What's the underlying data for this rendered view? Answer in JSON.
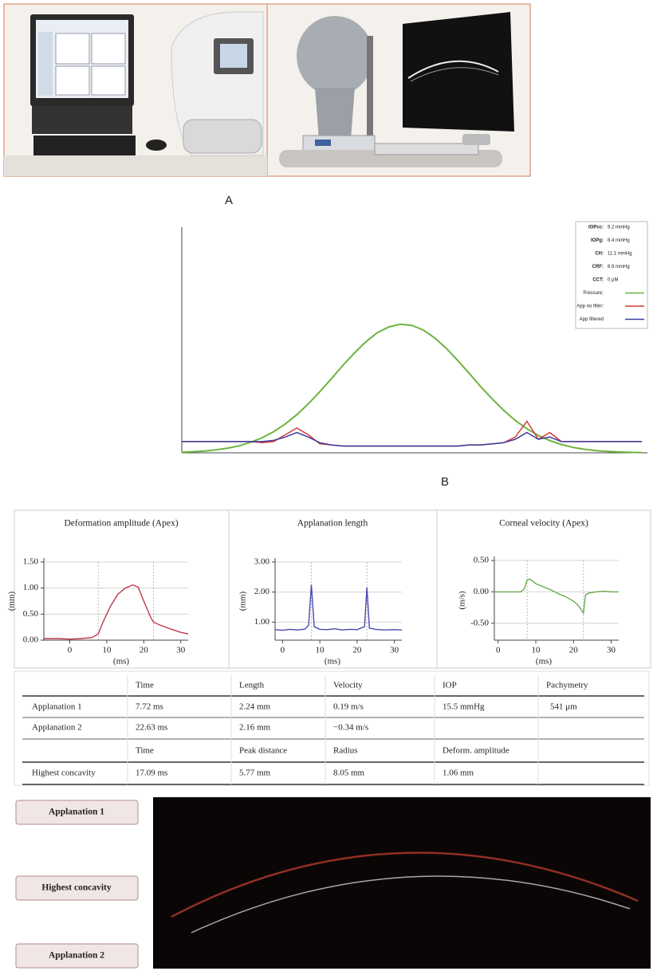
{
  "panel_labels": {
    "a": "A",
    "b": "B"
  },
  "chart_data": [
    {
      "type": "line",
      "stats": [
        {
          "label": "IOPcc:",
          "value": "9.2 mmHg"
        },
        {
          "label": "IOPg:",
          "value": "8.4 mmHg"
        },
        {
          "label": "CH:",
          "value": "11.1 mmHg"
        },
        {
          "label": "CRF:",
          "value": "8.9 mmHg"
        },
        {
          "label": "CCT:",
          "value": "0 μM"
        }
      ],
      "ylim": [
        0,
        100
      ],
      "series": [
        {
          "name": "Pressure:",
          "color": "#6cb33f",
          "values": [
            0.3,
            0.5,
            0.8,
            1.3,
            2.1,
            3.1,
            4.7,
            6.7,
            9.4,
            12.8,
            16.9,
            21.7,
            27.1,
            32.8,
            38.7,
            44.2,
            49.2,
            53.2,
            55.8,
            57,
            56.5,
            54.4,
            50.9,
            46.3,
            40.9,
            35.2,
            29.3,
            23.8,
            18.8,
            14.3,
            10.7,
            7.7,
            5.4,
            3.7,
            2.4,
            1.6,
            1,
            0.6,
            0.4,
            0.2,
            0.1
          ]
        },
        {
          "name": "App no filter:",
          "color": "#d63a3a",
          "values": [
            5,
            5,
            5,
            5,
            5,
            5,
            5,
            4.5,
            5,
            8,
            11,
            8,
            4,
            3.5,
            3,
            3,
            3,
            3,
            3,
            3,
            3,
            3,
            3,
            3,
            3,
            3.5,
            3.5,
            4,
            4.5,
            7,
            14,
            6,
            9,
            5,
            5,
            5,
            5,
            5,
            5,
            5,
            5
          ]
        },
        {
          "name": "App filtered",
          "color": "#3c3ca0",
          "values": [
            5,
            5,
            5,
            5,
            5,
            5,
            5,
            5,
            5.5,
            7,
            9,
            7,
            4.5,
            3.5,
            3,
            3,
            3,
            3,
            3,
            3,
            3,
            3,
            3,
            3,
            3,
            3.5,
            3.5,
            4,
            4.5,
            6,
            9,
            6,
            7,
            5,
            5,
            5,
            5,
            5,
            5,
            5,
            5
          ]
        }
      ]
    },
    {
      "type": "line",
      "title": "Deformation amplitude (Apex)",
      "x_label": "(ms)",
      "y_label": "(mm)",
      "color": "#c0394b",
      "x": [
        -7,
        -3,
        0,
        3,
        6,
        7.7,
        9,
        11,
        13,
        15,
        17,
        18.5,
        20,
        22,
        22.6,
        24,
        27,
        30,
        32
      ],
      "values": [
        0.03,
        0.03,
        0.02,
        0.03,
        0.05,
        0.12,
        0.35,
        0.65,
        0.88,
        1.0,
        1.06,
        1.02,
        0.75,
        0.42,
        0.35,
        0.3,
        0.22,
        0.15,
        0.12
      ],
      "xlim": [
        -7,
        32
      ],
      "xticks": [
        0,
        10,
        20,
        30
      ],
      "ylim": [
        0,
        1.5
      ],
      "yticks": [
        {
          "value": 0,
          "label": "0.00"
        },
        {
          "value": 0.5,
          "label": "0.50"
        },
        {
          "value": 1,
          "label": "1.00"
        },
        {
          "value": 1.5,
          "label": "1.50"
        }
      ],
      "vlines": [
        7.72,
        22.63
      ],
      "grid": true
    },
    {
      "type": "line",
      "title": "Applanation length",
      "x_label": "(ms)",
      "y_label": "(mm)",
      "color": "#4a4ab0",
      "x": [
        -2,
        0,
        2,
        4,
        6,
        7,
        7.72,
        8.5,
        10,
        12,
        14,
        16,
        18,
        20,
        22,
        22.63,
        23.3,
        25,
        27,
        30,
        32
      ],
      "values": [
        0.75,
        0.73,
        0.76,
        0.74,
        0.77,
        0.9,
        2.24,
        0.85,
        0.76,
        0.75,
        0.78,
        0.74,
        0.76,
        0.75,
        0.85,
        2.16,
        0.8,
        0.76,
        0.74,
        0.75,
        0.74
      ],
      "xlim": [
        -2,
        32
      ],
      "xticks": [
        0,
        10,
        20,
        30
      ],
      "ylim": [
        0.4,
        3.0
      ],
      "yticks": [
        {
          "value": 1,
          "label": "1.00"
        },
        {
          "value": 2,
          "label": "2.00"
        },
        {
          "value": 3,
          "label": "3.00"
        }
      ],
      "vlines": [
        7.72,
        22.63
      ],
      "grid": true
    },
    {
      "type": "line",
      "title": "Corneal velocity (Apex)",
      "x_label": "(ms)",
      "y_label": "(m/s)",
      "color": "#6aa84f",
      "x": [
        -1,
        0,
        3,
        6,
        7,
        7.72,
        8.5,
        10,
        12,
        14,
        16,
        18,
        20,
        21,
        22,
        22.63,
        23.2,
        24,
        26,
        28,
        30,
        32
      ],
      "values": [
        0,
        0,
        0,
        0,
        0.05,
        0.19,
        0.2,
        0.13,
        0.08,
        0.03,
        -0.03,
        -0.08,
        -0.15,
        -0.2,
        -0.28,
        -0.34,
        -0.05,
        -0.02,
        0,
        0.01,
        0,
        0
      ],
      "xlim": [
        -1,
        32
      ],
      "xticks": [
        0,
        10,
        20,
        30
      ],
      "ylim": [
        -0.77,
        0.5
      ],
      "yticks": [
        {
          "value": -0.5,
          "label": "-0.50"
        },
        {
          "value": 0,
          "label": "0.00"
        },
        {
          "value": 0.5,
          "label": "0.50"
        }
      ],
      "vlines": [
        7.72,
        22.63
      ],
      "grid": true
    }
  ],
  "table": {
    "columns": [
      "Time",
      "Length",
      "Velocity",
      "IOP",
      "Pachymetry"
    ],
    "rows": [
      {
        "label": "Applanation 1",
        "cells": [
          "7.72 ms",
          "2.24 mm",
          "0.19 m/s",
          "15.5 mmHg",
          "541 μm"
        ]
      },
      {
        "label": "Applanation 2",
        "cells": [
          "22.63 ms",
          "2.16 mm",
          "−0.34 m/s"
        ]
      }
    ],
    "columns2": [
      "Time",
      "Peak distance",
      "Radius",
      "Deform. amplitude"
    ],
    "rows2": [
      {
        "label": "Highest concavity",
        "cells": [
          "17.09 ms",
          "5.77 mm",
          "8.05 mm",
          "1.06 mm"
        ]
      }
    ]
  },
  "buttons": [
    "Applanation 1",
    "Highest concavity",
    "Applanation 2"
  ]
}
